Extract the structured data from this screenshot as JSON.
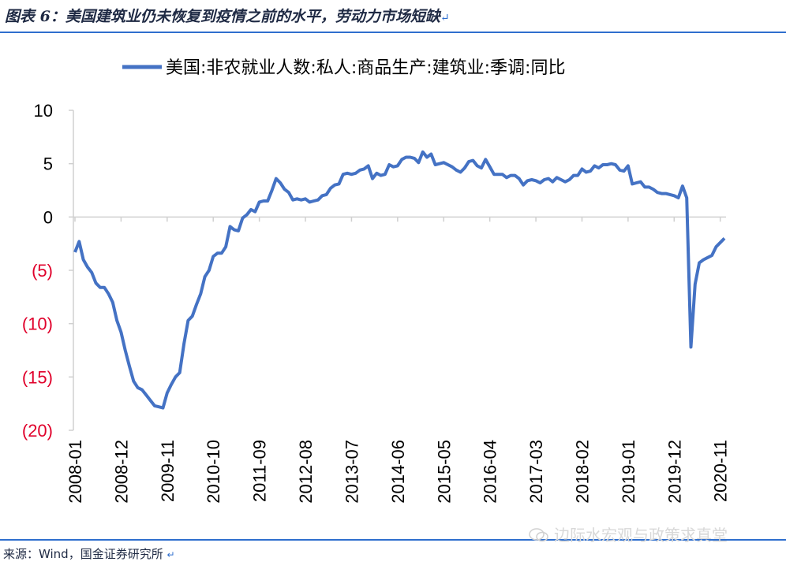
{
  "header": {
    "title": "图表 6：美国建筑业仍未恢复到疫情之前的水平，劳动力市场短缺",
    "return_mark": "↵"
  },
  "footer": {
    "source": "来源：Wind，国金证券研究所",
    "return_mark": "↵",
    "watermark": "边际水宏观与政策求真堂",
    "watermark_icon": "wechat-logo"
  },
  "chart_data": {
    "type": "line",
    "title": "",
    "xlabel": "",
    "ylabel": "",
    "ylim": [
      -20,
      10
    ],
    "yticks": [
      10,
      5,
      0,
      -5,
      -10,
      -15,
      -20
    ],
    "ytick_labels": [
      "10",
      "5",
      "0",
      "(5)",
      "(10)",
      "(15)",
      "(20)"
    ],
    "ytick_colors": [
      "#000000",
      "#000000",
      "#000000",
      "#e0002b",
      "#e0002b",
      "#e0002b",
      "#e0002b"
    ],
    "x_tick_labels": [
      "2008-01",
      "2008-12",
      "2009-11",
      "2010-10",
      "2011-09",
      "2012-08",
      "2013-07",
      "2014-06",
      "2015-05",
      "2016-04",
      "2017-03",
      "2018-02",
      "2019-01",
      "2019-12",
      "2020-11"
    ],
    "x_tick_positions": [
      0,
      11,
      22,
      33,
      44,
      55,
      66,
      77,
      88,
      99,
      110,
      121,
      132,
      143,
      154
    ],
    "legend_position": "top",
    "series": [
      {
        "name": "美国:非农就业人数:私人:商品生产:建筑业:季调:同比",
        "color": "#4472c4",
        "values": [
          -3.3,
          -2.3,
          -4.0,
          -4.7,
          -5.2,
          -6.2,
          -6.6,
          -6.6,
          -7.2,
          -8.0,
          -9.7,
          -10.8,
          -12.5,
          -14.0,
          -15.4,
          -16.0,
          -16.2,
          -16.7,
          -17.2,
          -17.7,
          -17.8,
          -17.9,
          -16.5,
          -15.7,
          -15.0,
          -14.6,
          -11.9,
          -9.7,
          -9.3,
          -8.2,
          -7.2,
          -5.6,
          -5.0,
          -3.7,
          -3.4,
          -3.4,
          -2.8,
          -0.9,
          -1.2,
          -1.3,
          -0.1,
          0.2,
          0.7,
          0.5,
          1.4,
          1.5,
          1.5,
          2.5,
          3.6,
          3.2,
          2.6,
          2.3,
          1.6,
          1.7,
          1.6,
          1.7,
          1.4,
          1.5,
          1.6,
          2.0,
          2.1,
          2.7,
          3.0,
          3.1,
          4.0,
          4.1,
          4.0,
          4.1,
          4.4,
          4.5,
          4.8,
          3.6,
          4.1,
          3.9,
          4.0,
          4.9,
          4.7,
          4.8,
          5.4,
          5.6,
          5.6,
          5.5,
          5.1,
          6.1,
          5.6,
          5.9,
          4.9,
          5.0,
          5.1,
          4.9,
          4.7,
          4.4,
          4.2,
          4.6,
          5.2,
          5.3,
          4.8,
          4.6,
          5.4,
          4.7,
          4.0,
          4.0,
          4.0,
          3.7,
          3.9,
          3.9,
          3.6,
          3.0,
          3.4,
          3.5,
          3.4,
          3.2,
          3.5,
          3.6,
          3.3,
          3.7,
          3.5,
          3.3,
          3.5,
          3.9,
          3.9,
          4.5,
          4.2,
          4.3,
          4.8,
          4.6,
          4.9,
          4.9,
          5.0,
          4.9,
          4.4,
          4.3,
          4.8,
          3.1,
          3.2,
          3.3,
          2.8,
          2.8,
          2.6,
          2.3,
          2.2,
          2.2,
          2.1,
          2.0,
          1.8,
          2.9,
          1.8,
          -12.2,
          -6.3,
          -4.3,
          -4.0,
          -3.8,
          -3.6,
          -2.8,
          -2.4,
          -2.0
        ]
      }
    ]
  }
}
